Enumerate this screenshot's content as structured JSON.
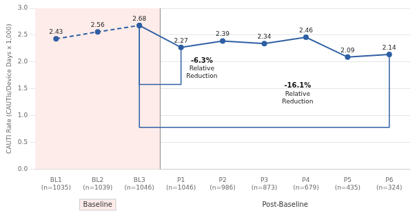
{
  "chart_data": {
    "type": "line",
    "categories": [
      "BL1\n(n=1035)",
      "BL2\n(n=1039)",
      "BL3\n(n=1046)",
      "P1\n(n=1046)",
      "P2\n(n=986)",
      "P3\n(n=873)",
      "P4\n(n=679)",
      "P5\n(n=435)",
      "P6\n(n=324)"
    ],
    "series": [
      {
        "values": [
          2.43,
          2.56,
          2.68,
          null,
          null,
          null,
          null,
          null,
          null
        ],
        "color": "#2E5FA3",
        "line_style": "dashed",
        "marker": "circle"
      },
      {
        "values": [
          null,
          null,
          2.68,
          2.27,
          2.39,
          2.34,
          2.46,
          2.09,
          2.14
        ],
        "color": "#2E5FA3",
        "line_style": "solid",
        "marker": "circle"
      }
    ],
    "y_label": "CAUTI Rate (CAUTIs/Device Days x 1,000)",
    "ylim": [
      0,
      3.0
    ],
    "yticks": [
      {
        "value": 0.0,
        "label": "0.0"
      },
      {
        "value": 0.5,
        "label": "0.5"
      },
      {
        "value": 1.0,
        "label": "1.0"
      },
      {
        "value": 1.5,
        "label": "1.5"
      },
      {
        "value": 2.0,
        "label": "2.0"
      },
      {
        "value": 2.5,
        "label": "2.5"
      },
      {
        "value": 3.0,
        "label": "3.0"
      }
    ],
    "grid": "y",
    "data_labels": true,
    "annotations": [
      {
        "type": "region",
        "text": "Baseline",
        "from": 0,
        "to": 2,
        "color": "#FDECEA"
      },
      {
        "type": "region",
        "text": "Post-Baseline",
        "from": 3,
        "to": 8
      },
      {
        "type": "bracket",
        "from": 2,
        "to": 3,
        "bottom": 1.58,
        "value_text": "-6.3%",
        "text": [
          "Relative",
          "Reduction"
        ],
        "color": "#2E5FA3"
      },
      {
        "type": "bracket",
        "from": 2,
        "to": 8,
        "bottom": 0.78,
        "value_text": "-16.1%",
        "text": [
          "Relative",
          "Reduction"
        ],
        "color": "#2E5FA3"
      }
    ]
  }
}
